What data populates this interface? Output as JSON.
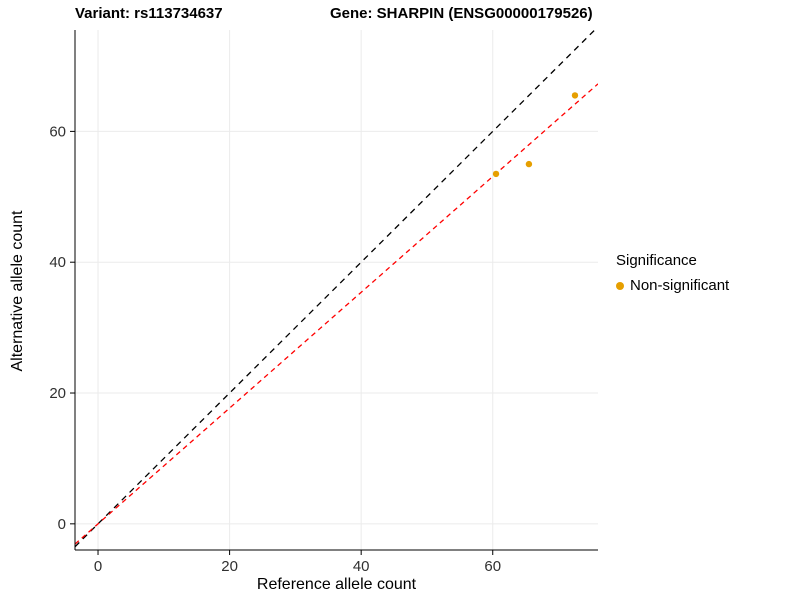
{
  "chart_data": {
    "type": "scatter",
    "title_left": "Variant: rs113734637",
    "title_right": "Gene: SHARPIN (ENSG00000179526)",
    "xlabel": "Reference allele count",
    "ylabel": "Alternative allele count",
    "xlim": [
      -3.5,
      76
    ],
    "ylim": [
      -4,
      75.5
    ],
    "x_ticks": [
      0,
      20,
      40,
      60
    ],
    "y_ticks": [
      0,
      20,
      40,
      60
    ],
    "grid": true,
    "grid_color": "#ebebeb",
    "axis_color": "#000000",
    "series": [
      {
        "name": "Non-significant",
        "color": "#E69F00",
        "points": [
          [
            60.5,
            53.5
          ],
          [
            65.5,
            55
          ],
          [
            72.5,
            65.5
          ]
        ]
      }
    ],
    "lines": [
      {
        "name": "identity-line",
        "color": "#000000",
        "slope": 1.0,
        "intercept": 0,
        "dash": "6,5"
      },
      {
        "name": "fit-line",
        "color": "#FF0000",
        "slope": 0.885,
        "intercept": 0,
        "dash": "5,4"
      }
    ],
    "legend": {
      "title": "Significance",
      "position": "right",
      "items": [
        {
          "label": "Non-significant",
          "color": "#E69F00"
        }
      ]
    }
  }
}
